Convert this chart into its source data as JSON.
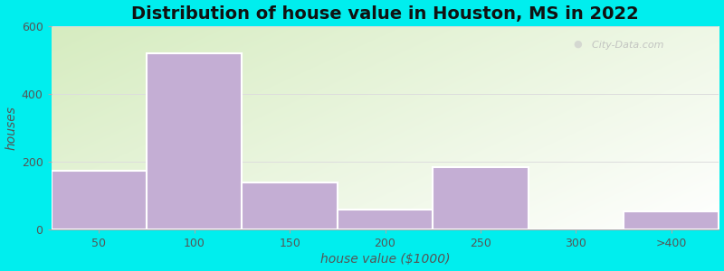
{
  "title": "Distribution of house value in Houston, MS in 2022",
  "xlabel": "house value ($1000)",
  "ylabel": "houses",
  "bar_labels": [
    "50",
    "100",
    "150",
    "200",
    "250",
    "300",
    ">400"
  ],
  "bar_heights": [
    175,
    520,
    140,
    60,
    185,
    0,
    55
  ],
  "bar_color": "#C4AED4",
  "bar_edgecolor": "#ffffff",
  "bar_linewidth": 1.5,
  "ylim": [
    0,
    600
  ],
  "yticks": [
    0,
    200,
    400,
    600
  ],
  "outer_bg": "#00EEEE",
  "grad_color_topleft": "#d6ecc0",
  "grad_color_right": "#f0f8f0",
  "grad_color_white": "#ffffff",
  "title_fontsize": 14,
  "axis_label_fontsize": 10,
  "tick_fontsize": 9,
  "bar_width": 1.0,
  "watermark": "  City-Data.com"
}
